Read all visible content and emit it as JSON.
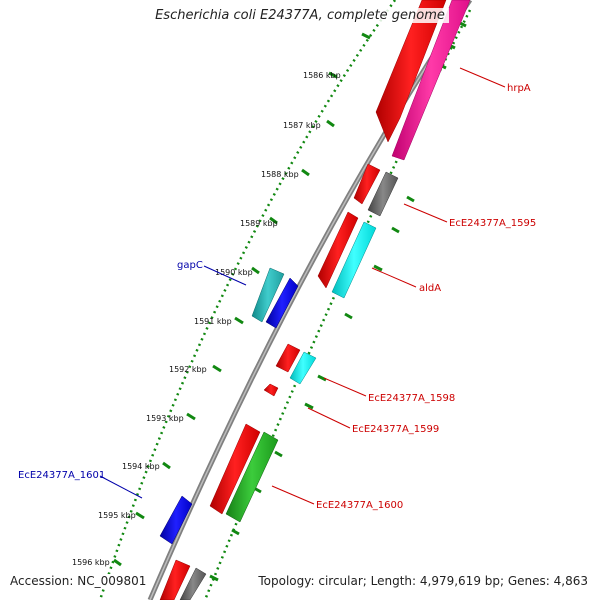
{
  "title": "Escherichia coli E24377A, complete genome",
  "footer": {
    "accession": "Accession: NC_009801",
    "topology": "Topology: circular; Length: 4,979,619 bp; Genes: 4,863"
  },
  "ticks": [
    "1586 kbp",
    "1587 kbp",
    "1588 kbp",
    "1589 kbp",
    "1590 kbp",
    "1591 kbp",
    "1592 kbp",
    "1593 kbp",
    "1594 kbp",
    "1595 kbp",
    "1596 kbp"
  ],
  "gene_labels": {
    "hrpA": "hrpA",
    "EcE24377A_1595": "EcE24377A_1595",
    "aldA": "aldA",
    "gapC": "gapC",
    "EcE24377A_1598": "EcE24377A_1598",
    "EcE24377A_1599": "EcE24377A_1599",
    "EcE24377A_1601": "EcE24377A_1601",
    "EcE24377A_1600": "EcE24377A_1600"
  },
  "colors": {
    "backbone": "#808080",
    "red": "#ff0000",
    "pink": "#ff1493",
    "cyan": "#00ffff",
    "teal": "#20b2aa",
    "blue": "#0000ff",
    "green": "#22aa22",
    "grey": "#666666",
    "dots": "#118811",
    "label_red": "#cc0000",
    "label_blue": "#0000aa"
  }
}
